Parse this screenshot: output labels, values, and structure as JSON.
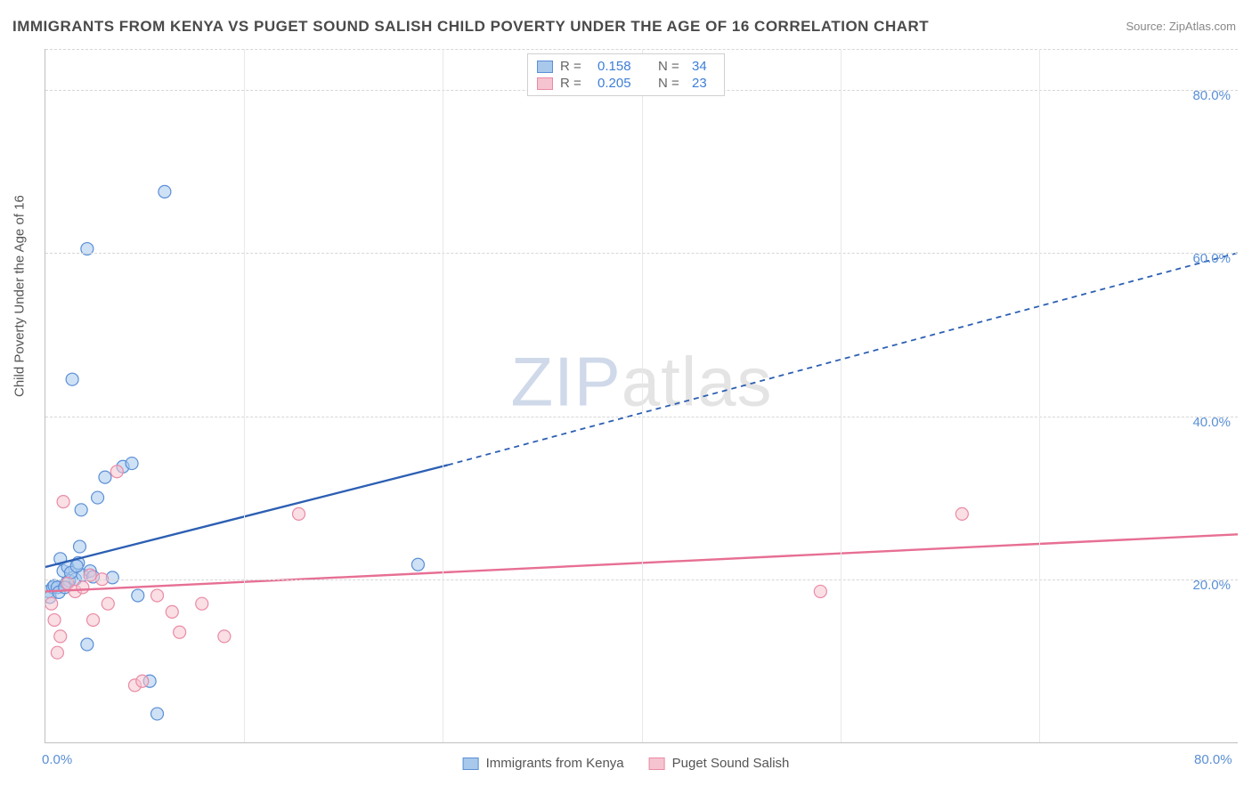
{
  "title": "IMMIGRANTS FROM KENYA VS PUGET SOUND SALISH CHILD POVERTY UNDER THE AGE OF 16 CORRELATION CHART",
  "source": "Source: ZipAtlas.com",
  "ylabel": "Child Poverty Under the Age of 16",
  "watermark_zip": "ZIP",
  "watermark_atlas": "atlas",
  "chart": {
    "type": "scatter",
    "xlim": [
      0,
      80
    ],
    "ylim": [
      0,
      85
    ],
    "x_ticks": [
      0,
      80
    ],
    "x_tick_labels": [
      "0.0%",
      "80.0%"
    ],
    "y_ticks": [
      20,
      40,
      60,
      80
    ],
    "y_tick_labels": [
      "20.0%",
      "40.0%",
      "60.0%",
      "80.0%"
    ],
    "x_gridlines": [
      13.3,
      26.6,
      40,
      53.3,
      66.6
    ],
    "background_color": "#ffffff",
    "grid_color": "#d6d6d6",
    "axis_color": "#bfbfbf",
    "tick_label_color": "#5a8fd6",
    "series": [
      {
        "name": "Immigrants from Kenya",
        "color_fill": "#a8c8ec",
        "color_stroke": "#5a8fd6",
        "marker_radius": 7,
        "r_value": "0.158",
        "n_value": "34",
        "points": [
          [
            0.2,
            18.5
          ],
          [
            0.5,
            19
          ],
          [
            0.6,
            19.2
          ],
          [
            0.8,
            19
          ],
          [
            1,
            22.5
          ],
          [
            1.2,
            21
          ],
          [
            1.4,
            19.5
          ],
          [
            1.6,
            19.8
          ],
          [
            1.5,
            21.5
          ],
          [
            2,
            20
          ],
          [
            2.2,
            22
          ],
          [
            2.5,
            20.5
          ],
          [
            2.3,
            24
          ],
          [
            2.4,
            28.5
          ],
          [
            3,
            21
          ],
          [
            3.2,
            20.3
          ],
          [
            3.5,
            30
          ],
          [
            4,
            32.5
          ],
          [
            4.5,
            20.2
          ],
          [
            5.2,
            33.8
          ],
          [
            5.8,
            34.2
          ],
          [
            6.2,
            18
          ],
          [
            7,
            7.5
          ],
          [
            7.5,
            3.5
          ],
          [
            2.8,
            12
          ],
          [
            1.8,
            44.5
          ],
          [
            2.8,
            60.5
          ],
          [
            8,
            67.5
          ],
          [
            25,
            21.8
          ],
          [
            0.3,
            17.8
          ],
          [
            0.9,
            18.4
          ],
          [
            1.3,
            19
          ],
          [
            1.7,
            20.8
          ],
          [
            2.1,
            21.6
          ]
        ],
        "trend": {
          "x1": 0,
          "y1": 21.5,
          "x2": 27,
          "y2": 34,
          "x2_ext": 80,
          "y2_ext": 60,
          "color": "#2c5fb3"
        }
      },
      {
        "name": "Puget Sound Salish",
        "color_fill": "#f6c4d0",
        "color_stroke": "#e98ba6",
        "marker_radius": 7,
        "r_value": "0.205",
        "n_value": "23",
        "points": [
          [
            0.4,
            17
          ],
          [
            0.6,
            15
          ],
          [
            1,
            13
          ],
          [
            1.2,
            29.5
          ],
          [
            1.5,
            19.5
          ],
          [
            2,
            18.5
          ],
          [
            2.5,
            19
          ],
          [
            3,
            20.5
          ],
          [
            3.2,
            15
          ],
          [
            3.8,
            20
          ],
          [
            4.2,
            17
          ],
          [
            6,
            7
          ],
          [
            6.5,
            7.5
          ],
          [
            7.5,
            18
          ],
          [
            8.5,
            16
          ],
          [
            9,
            13.5
          ],
          [
            10.5,
            17
          ],
          [
            12,
            13
          ],
          [
            17,
            28
          ],
          [
            52,
            18.5
          ],
          [
            61.5,
            28
          ],
          [
            4.8,
            33.2
          ],
          [
            0.8,
            11
          ]
        ],
        "trend": {
          "x1": 0,
          "y1": 18.5,
          "x2": 80,
          "y2": 25.5,
          "color": "#e76f94"
        }
      }
    ]
  },
  "legend_top": {
    "r_label": "R =",
    "n_label": "N ="
  },
  "legend_bottom": {
    "items": [
      "Immigrants from Kenya",
      "Puget Sound Salish"
    ]
  }
}
